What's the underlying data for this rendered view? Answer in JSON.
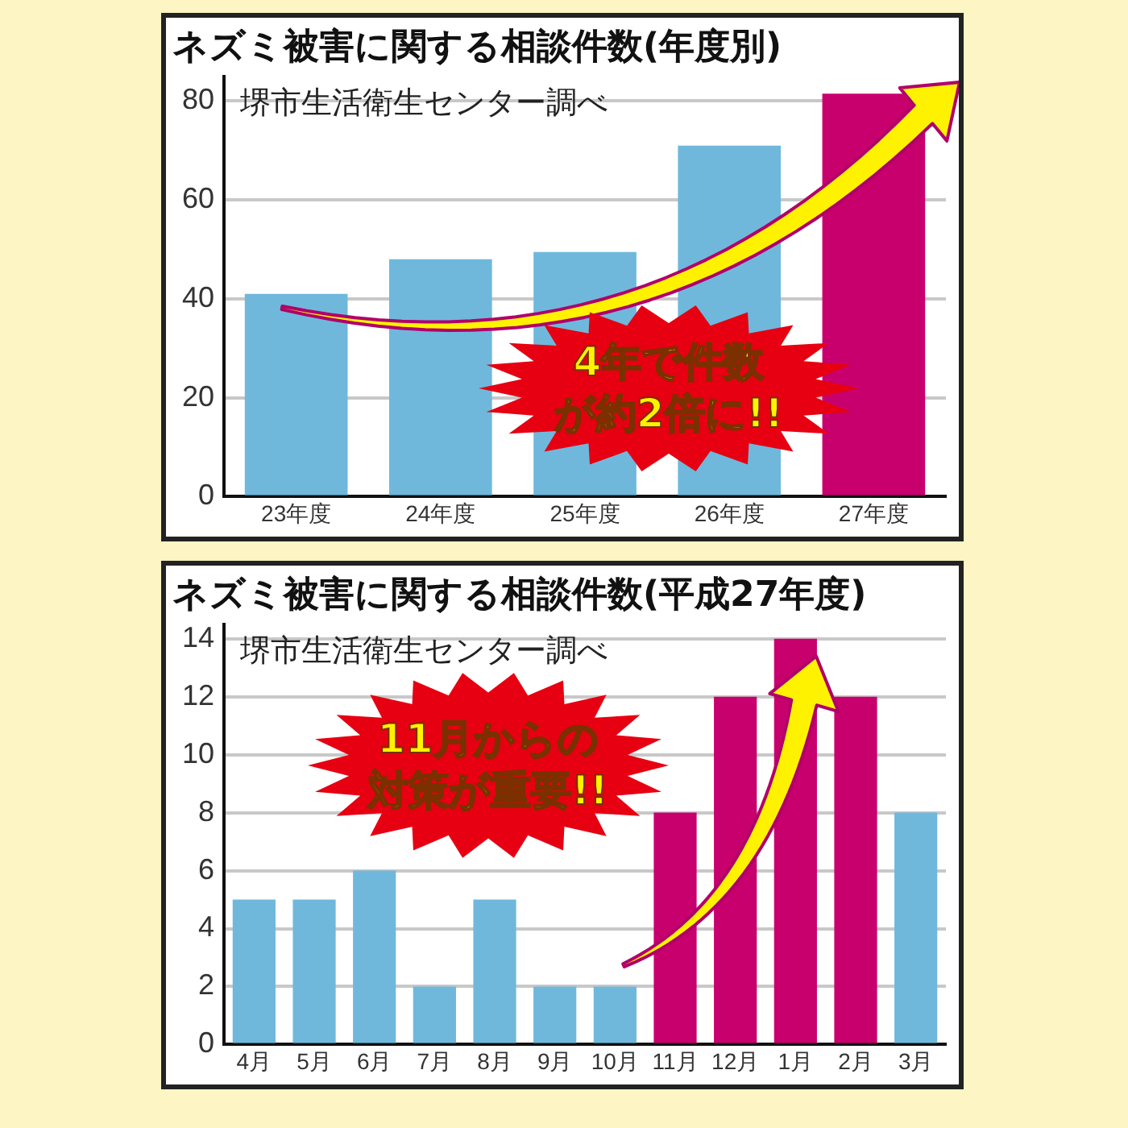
{
  "chart_data": [
    {
      "type": "bar",
      "title": "ネズミ被害に関する相談件数(年度別)",
      "subtitle": "堺市生活衛生センター調べ",
      "categories": [
        "23年度",
        "24年度",
        "25年度",
        "26年度",
        "27年度"
      ],
      "values": [
        41,
        48,
        49.5,
        71,
        81.5
      ],
      "colors": [
        "#6fb8dc",
        "#6fb8dc",
        "#6fb8dc",
        "#6fb8dc",
        "#c8006e"
      ],
      "ylim": [
        0,
        85
      ],
      "yticks": [
        0,
        20,
        40,
        60,
        80
      ],
      "grid": "y",
      "legend": false,
      "annotations": [
        "4年で件数が約2倍に!!"
      ]
    },
    {
      "type": "bar",
      "title": "ネズミ被害に関する相談件数(平成27年度)",
      "subtitle": "堺市生活衛生センター調べ",
      "categories": [
        "4月",
        "5月",
        "6月",
        "7月",
        "8月",
        "9月",
        "10月",
        "11月",
        "12月",
        "1月",
        "2月",
        "3月"
      ],
      "values": [
        5,
        5,
        6,
        2,
        5,
        2,
        2,
        8,
        12,
        14,
        12,
        8
      ],
      "colors": [
        "#6fb8dc",
        "#6fb8dc",
        "#6fb8dc",
        "#6fb8dc",
        "#6fb8dc",
        "#6fb8dc",
        "#6fb8dc",
        "#c8006e",
        "#c8006e",
        "#c8006e",
        "#c8006e",
        "#6fb8dc"
      ],
      "ylim": [
        0,
        14.5
      ],
      "yticks": [
        0,
        2,
        4,
        6,
        8,
        10,
        12,
        14
      ],
      "grid": "y",
      "legend": false,
      "annotations": [
        "11月からの対策が重要!!"
      ]
    }
  ]
}
